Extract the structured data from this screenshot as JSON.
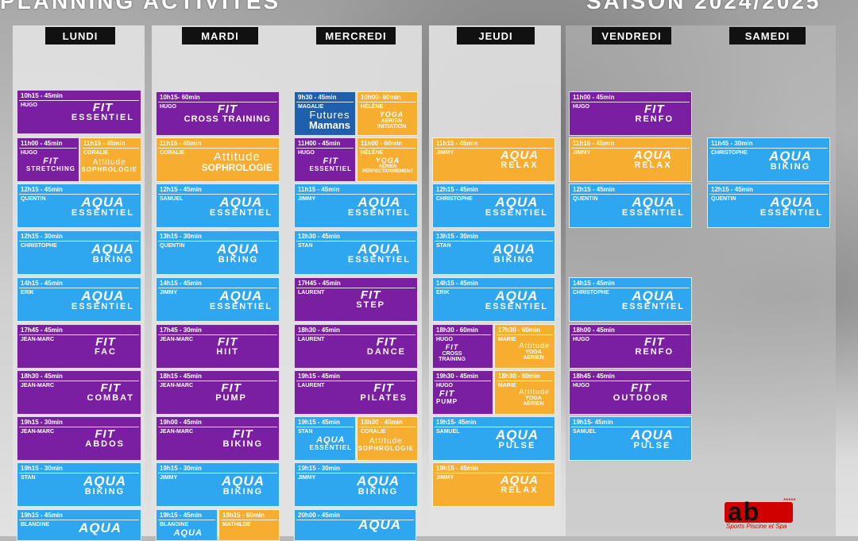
{
  "header": {
    "left": "PLANNING ACTIVITES",
    "right": "SAISON 2024/2025"
  },
  "days": [
    "LUNDI",
    "MARDI",
    "MERCREDI",
    "JEUDI",
    "VENDREDI",
    "SAMEDI"
  ],
  "slots": [
    {
      "time": "10h15 - 45min",
      "coach": "HUGO",
      "b1": "FIT",
      "b2": "ESSENTIEL"
    },
    {
      "time": "11h00 - 45min",
      "coach": "HUGO",
      "b1": "FIT",
      "b2": "STRETCHING"
    },
    {
      "time": "11h15 - 45min",
      "coach": "CORALIE",
      "b1": "Attitude",
      "b2": "SOPHROLOGIE"
    },
    {
      "time": "12h15 - 45min",
      "coach": "QUENTIN",
      "b1": "AQUA",
      "b2": "ESSENTIEL"
    },
    {
      "time": "12h15 - 30min",
      "coach": "CHRISTOPHE",
      "b1": "AQUA",
      "b2": "BIKING"
    },
    {
      "time": "14h15 - 45min",
      "coach": "ERIK",
      "b1": "AQUA",
      "b2": "ESSENTIEL"
    },
    {
      "time": "17h45 - 45min",
      "coach": "JEAN-MARC",
      "b1": "FIT",
      "b2": "FAC"
    },
    {
      "time": "18h30 - 45min",
      "coach": "JEAN-MARC",
      "b1": "FIT",
      "b2": "COMBAT"
    },
    {
      "time": "19h15 - 30min",
      "coach": "JEAN-MARC",
      "b1": "FIT",
      "b2": "ABDOS"
    },
    {
      "time": "19h15 - 30min",
      "coach": "STAN",
      "b1": "AQUA",
      "b2": "BIKING"
    },
    {
      "time": "19h15 - 45min",
      "coach": "BLANDINE",
      "b1": "AQUA",
      "b2": ""
    },
    {
      "time": "10h15- 60min",
      "coach": "HUGO",
      "b1": "FIT",
      "b2": "CROSS TRAINING"
    },
    {
      "time": "11h15 - 45min",
      "coach": "CORALIE",
      "b1": "Attitude",
      "b2": "SOPHROLOGIE"
    },
    {
      "time": "12h15 - 45min",
      "coach": "SAMUEL",
      "b1": "AQUA",
      "b2": "ESSENTIEL"
    },
    {
      "time": "13h15 - 30min",
      "coach": "QUENTIN",
      "b1": "AQUA",
      "b2": "BIKING"
    },
    {
      "time": "14h15 - 45min",
      "coach": "JIMMY",
      "b1": "AQUA",
      "b2": "ESSENTIEL"
    },
    {
      "time": "17h45 - 30min",
      "coach": "JEAN-MARC",
      "b1": "FIT",
      "b2": "HIIT"
    },
    {
      "time": "18h15 - 45min",
      "coach": "JEAN-MARC",
      "b1": "FIT",
      "b2": "PUMP"
    },
    {
      "time": "19h00 - 45min",
      "coach": "JEAN-MARC",
      "b1": "FIT",
      "b2": "BIKING"
    },
    {
      "time": "19h15 - 30min",
      "coach": "JIMMY",
      "b1": "AQUA",
      "b2": "BIKING"
    },
    {
      "time": "19h15 - 45min",
      "coach": "BLANDINE",
      "b1": "AQUA",
      "b2": ""
    },
    {
      "time": "19h15 - 60min",
      "coach": "MATHILDE",
      "b1": "",
      "b2": ""
    },
    {
      "time": "9h30 - 45min",
      "coach": "MAGALIE",
      "b1": "Futures",
      "b2": "Mamans"
    },
    {
      "time": "10h00- 60min",
      "coach": "HÉLÈNE",
      "b1": "YOGA",
      "b2": "AÉRIEN INITIATION"
    },
    {
      "time": "11H00 - 45min",
      "coach": "HUGO",
      "b1": "FIT",
      "b2": "ESSENTIEL"
    },
    {
      "time": "11h00 - 60min",
      "coach": "HÉLÈNE",
      "b1": "YOGA",
      "b2": "AÉRIEN PERFECTIONNEMENT"
    },
    {
      "time": "11h15 - 45min",
      "coach": "JIMMY",
      "b1": "AQUA",
      "b2": "ESSENTIEL"
    },
    {
      "time": "12h30 - 45min",
      "coach": "STAN",
      "b1": "AQUA",
      "b2": "ESSENTIEL"
    },
    {
      "time": "17H45 - 45min",
      "coach": "LAURENT",
      "b1": "FIT",
      "b2": "STEP"
    },
    {
      "time": "18h30 - 45min",
      "coach": "LAURENT",
      "b1": "FIT",
      "b2": "DANCE"
    },
    {
      "time": "19h15 - 45min",
      "coach": "LAURENT",
      "b1": "FIT",
      "b2": "PILATES"
    },
    {
      "time": "19h15 - 45min",
      "coach": "STAN",
      "b1": "AQUA",
      "b2": "ESSENTIEL"
    },
    {
      "time": "18h30 - 45min",
      "coach": "CORALIE",
      "b1": "Attitude",
      "b2": "SOPHROLOGIE"
    },
    {
      "time": "19h15 - 30min",
      "coach": "JIMMY",
      "b1": "AQUA",
      "b2": "BIKING"
    },
    {
      "time": "20h00 - 45min",
      "coach": "",
      "b1": "AQUA",
      "b2": ""
    },
    {
      "time": "11h15 - 45min",
      "coach": "JIMMY",
      "b1": "AQUA",
      "b2": "RELAX"
    },
    {
      "time": "12h15 - 45min",
      "coach": "CHRISTOPHE",
      "b1": "AQUA",
      "b2": "ESSENTIEL"
    },
    {
      "time": "13h15 - 30min",
      "coach": "STAN",
      "b1": "AQUA",
      "b2": "BIKING"
    },
    {
      "time": "14h15 - 45min",
      "coach": "ERIK",
      "b1": "AQUA",
      "b2": "ESSENTIEL"
    },
    {
      "time": "18h30 - 60min",
      "coach": "HUGO",
      "b1": "FIT",
      "b2": "CROSS TRAINING"
    },
    {
      "time": "17h30 - 60min",
      "coach": "MARIE",
      "b1": "Attitude",
      "b2": "YOGA AÉRIEN"
    },
    {
      "time": "19h30 - 45min",
      "coach": "HUGO",
      "b1": "FIT",
      "b2": "PUMP"
    },
    {
      "time": "18h30 - 60min",
      "coach": "MARIE",
      "b1": "Attitude",
      "b2": "YOGA AÉRIEN"
    },
    {
      "time": "19h15- 45min",
      "coach": "SAMUEL",
      "b1": "AQUA",
      "b2": "PULSE"
    },
    {
      "time": "19h15 - 45min",
      "coach": "JIMMY",
      "b1": "AQUA",
      "b2": "RELAX"
    },
    {
      "time": "11h00 - 45min",
      "coach": "HUGO",
      "b1": "FIT",
      "b2": "RENFO"
    },
    {
      "time": "11h15 - 45min",
      "coach": "JIMMY",
      "b1": "AQUA",
      "b2": "RELAX"
    },
    {
      "time": "12h15 - 45min",
      "coach": "QUENTIN",
      "b1": "AQUA",
      "b2": "ESSENTIEL"
    },
    {
      "time": "14h15 - 45min",
      "coach": "CHRISTOPHE",
      "b1": "AQUA",
      "b2": "ESSENTIEL"
    },
    {
      "time": "18h00 - 45min",
      "coach": "HUGO",
      "b1": "FIT",
      "b2": "RENFO"
    },
    {
      "time": "18h45 - 45min",
      "coach": "HUGO",
      "b1": "FIT",
      "b2": "OUTDOOR"
    },
    {
      "time": "19h15- 45min",
      "coach": "SAMUEL",
      "b1": "AQUA",
      "b2": "PULSE"
    },
    {
      "time": "11h45 - 30min",
      "coach": "CHRISTOPHE",
      "b1": "AQUA",
      "b2": "BIKING"
    },
    {
      "time": "12h15 - 45min",
      "coach": "QUENTIN",
      "b1": "AQUA",
      "b2": "ESSENTIEL"
    }
  ],
  "logo": {
    "mark": "ab",
    "tagline": "Sports Piscine et Spa",
    "stars": "*****"
  }
}
